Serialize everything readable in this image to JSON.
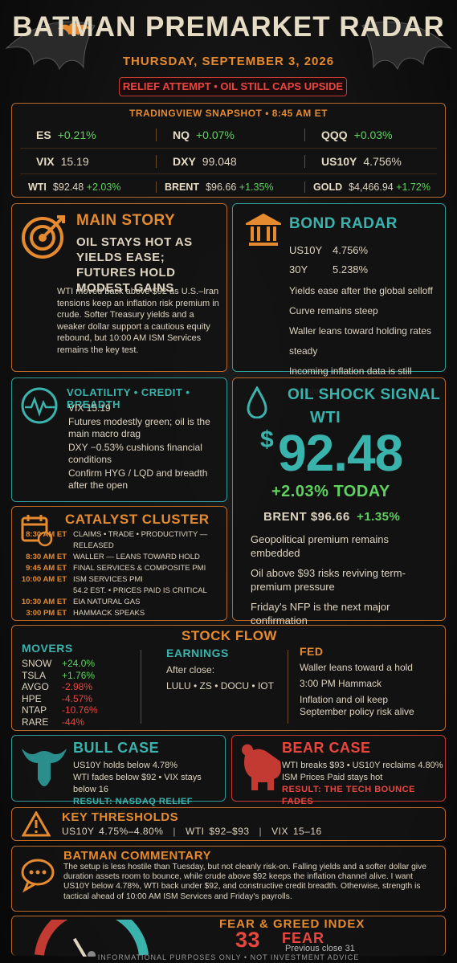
{
  "header": {
    "title": "BATMAN PREMARKET RADAR",
    "date": "THURSDAY, SEPTEMBER 3, 2026",
    "tagline": "RELIEF ATTEMPT • OIL STILL CAPS UPSIDE"
  },
  "snapshot": {
    "title": "TRADINGVIEW SNAPSHOT • 8:45 AM ET",
    "rows": [
      [
        {
          "label": "ES",
          "change": "+0.21%"
        },
        {
          "label": "NQ",
          "change": "+0.07%"
        },
        {
          "label": "QQQ",
          "change": "+0.03%"
        }
      ],
      [
        {
          "label": "VIX",
          "value": "15.19"
        },
        {
          "label": "DXY",
          "value": "99.048"
        },
        {
          "label": "US10Y",
          "value": "4.756%"
        }
      ],
      [
        {
          "label": "WTI",
          "value": "$92.48",
          "change": "+2.03%"
        },
        {
          "label": "BRENT",
          "value": "$96.66",
          "change": "+1.35%"
        },
        {
          "label": "GOLD",
          "value": "$4,466.94",
          "change": "+1.72%"
        }
      ]
    ]
  },
  "main_story": {
    "heading": "MAIN STORY",
    "headline": "OIL STAYS HOT AS YIELDS EASE; FUTURES HOLD MODEST GAINS",
    "body": "WTI moved back above $92 as U.S.–Iran tensions keep an inflation risk premium in crude. Softer Treasury yields and a weaker dollar support a cautious equity rebound, but 10:00 AM ISM Services remains the key test."
  },
  "bond_radar": {
    "heading": "BOND RADAR",
    "rates": [
      {
        "label": "US10Y",
        "value": "4.756%"
      },
      {
        "label": "30Y",
        "value": "5.238%"
      }
    ],
    "notes": [
      "Yields ease after the global selloff",
      "Curve remains steep",
      "Waller leans toward holding rates steady",
      "Incoming inflation data is still decisive"
    ]
  },
  "volatility": {
    "heading": "VOLATILITY • CREDIT • BREADTH",
    "items": [
      "VIX 15.19",
      "Futures modestly green; oil is the main macro drag",
      "DXY −0.53% cushions financial conditions",
      "Confirm HYG / LQD and breadth after the open"
    ]
  },
  "oil_shock": {
    "heading": "OIL SHOCK SIGNAL",
    "label": "WTI",
    "currency": "$",
    "price": "92.48",
    "change": "+2.03% TODAY",
    "brent": "BRENT $96.66",
    "brent_change": "+1.35%",
    "notes": [
      "Geopolitical premium remains embedded",
      "Oil above $93 risks reviving term-premium pressure",
      "Friday's NFP is the next major confirmation"
    ]
  },
  "catalyst": {
    "heading": "CATALYST CLUSTER",
    "events": [
      {
        "time": "8:30 AM ET",
        "text": "CLAIMS • TRADE • PRODUCTIVITY — RELEASED"
      },
      {
        "time": "8:30 AM ET",
        "text": "WALLER — LEANS TOWARD HOLD"
      },
      {
        "time": "9:45 AM ET",
        "text": "FINAL SERVICES & COMPOSITE PMI"
      },
      {
        "time": "10:00 AM ET",
        "text": "ISM SERVICES PMI",
        "detail": "54.2 EST. • PRICES PAID IS CRITICAL"
      },
      {
        "time": "10:30 AM ET",
        "text": "EIA NATURAL GAS"
      },
      {
        "time": "3:00 PM ET",
        "text": "HAMMACK SPEAKS"
      }
    ]
  },
  "stock_flow": {
    "heading": "STOCK FLOW",
    "movers_heading": "MOVERS",
    "movers": [
      {
        "ticker": "SNOW",
        "change": "+24.0%"
      },
      {
        "ticker": "TSLA",
        "change": "+1.76%"
      },
      {
        "ticker": "AVGO",
        "change": "-2.98%"
      },
      {
        "ticker": "HPE",
        "change": "-4.57%"
      },
      {
        "ticker": "NTAP",
        "change": "-10.76%"
      },
      {
        "ticker": "RARE",
        "change": "-44%"
      }
    ],
    "earnings_heading": "EARNINGS",
    "earnings_note": "After close:",
    "earnings": "LULU • ZS • DOCU • IOT",
    "fed_heading": "FED",
    "fed": [
      "Waller leans toward a hold",
      "3:00 PM Hammack",
      "Inflation and oil keep September policy risk alive"
    ]
  },
  "bull_case": {
    "heading": "BULL CASE",
    "lines": [
      "US10Y holds below 4.78%",
      "WTI fades below $92 • VIX stays below 16"
    ],
    "result": "RESULT: NASDAQ RELIEF BROADENS"
  },
  "bear_case": {
    "heading": "BEAR CASE",
    "lines": [
      "WTI breaks $93 • US10Y reclaims 4.80%",
      "ISM Prices Paid stays hot"
    ],
    "result": "RESULT: THE TECH BOUNCE FADES"
  },
  "thresholds": {
    "heading": "KEY THRESHOLDS",
    "items": [
      "US10Y 4.75%–4.80%",
      "WTI $92–$93",
      "VIX 15–16"
    ]
  },
  "commentary": {
    "heading": "BATMAN COMMENTARY",
    "body": "The setup is less hostile than Tuesday, but not cleanly risk-on. Falling yields and a softer dollar give duration assets room to bounce, while crude above $92 keeps the inflation channel alive. I want US10Y below 4.78%, WTI back under $92, and constructive credit breadth. Otherwise, strength is tactical ahead of 10:00 AM ISM Services and Friday's payrolls."
  },
  "fear_greed": {
    "title": "FEAR & GREED INDEX",
    "value": 33,
    "label": "FEAR",
    "previous": "Previous close 31"
  },
  "footer": "INFORMATIONAL PURPOSES ONLY • NOT INVESTMENT ADVICE"
}
